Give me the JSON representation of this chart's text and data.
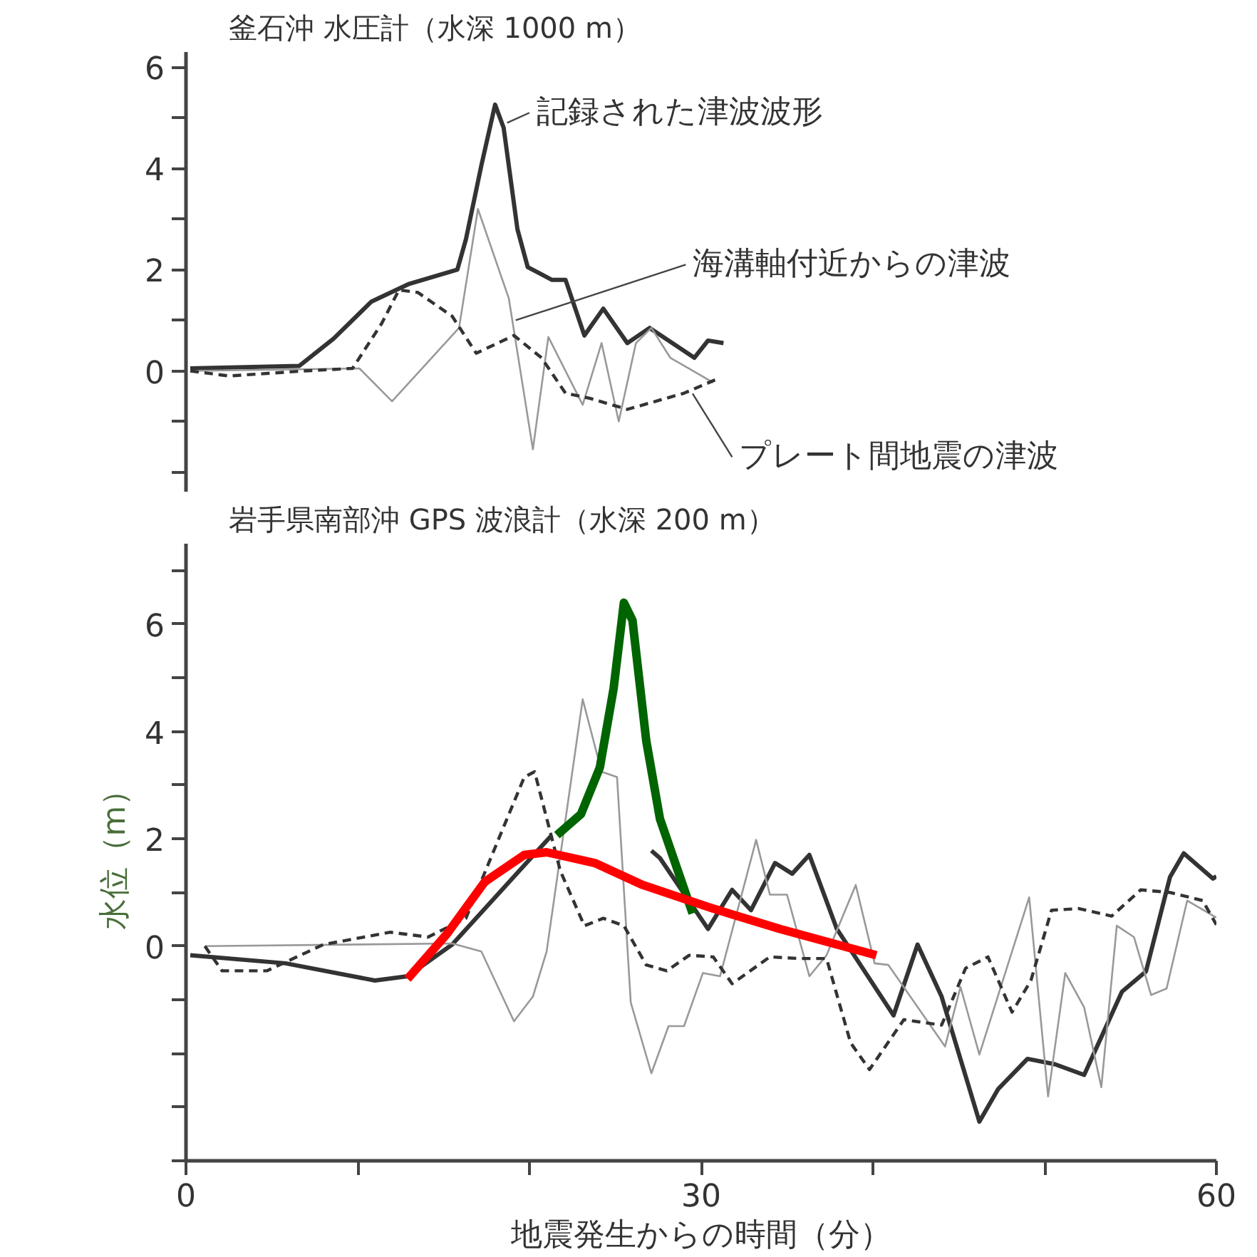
{
  "chart_data": [
    {
      "type": "line",
      "title": "釜石沖 水圧計（水深 1000 m）",
      "xlim": [
        0,
        60
      ],
      "ylim": [
        -2.4,
        6.3
      ],
      "tick_labels": "y",
      "grid": false,
      "yticks": [
        {
          "value": -2,
          "label": null
        },
        {
          "value": -1,
          "label": null
        },
        0,
        {
          "value": 1,
          "label": null
        },
        2,
        {
          "value": 3,
          "label": null
        },
        4,
        {
          "value": 5,
          "label": null
        },
        6
      ],
      "series": [
        {
          "name": "記録された津波波形",
          "color": "#333333",
          "line_style": "solid",
          "x": [
            0.25,
            6.6,
            8.6,
            10.8,
            13,
            15.8,
            16.3,
            17.2,
            18,
            18.5,
            19.3,
            19.9,
            21.3,
            22.1,
            23.2,
            24.3,
            25.7,
            27,
            29.6,
            30.4,
            31.3
          ],
          "values": [
            0.05,
            0.1,
            0.64,
            1.37,
            1.72,
            2.0,
            2.6,
            4.06,
            5.26,
            4.8,
            2.8,
            2.05,
            1.8,
            1.8,
            0.7,
            1.23,
            0.55,
            0.85,
            0.26,
            0.6,
            0.55
          ]
        },
        {
          "name": "海溝軸付近からの津波",
          "color": "#999999",
          "line_style": "solid",
          "x": [
            0.25,
            10.1,
            12,
            15.9,
            17,
            18.8,
            20.2,
            21.1,
            23.1,
            24.2,
            25.2,
            26.2,
            27.1,
            28.2,
            30.7
          ],
          "values": [
            0,
            0.05,
            -0.6,
            0.85,
            3.2,
            1.43,
            -1.55,
            0.67,
            -0.67,
            0.55,
            -1.0,
            0.55,
            0.85,
            0.26,
            -0.23
          ]
        },
        {
          "name": "プレート間地震の津波",
          "color": "#333333",
          "line_style": "dashed",
          "x": [
            0.25,
            2.5,
            6.9,
            9.7,
            11.4,
            12.4,
            13.5,
            15.5,
            16.9,
            19.1,
            20.7,
            22.1,
            23.5,
            25.7,
            29,
            31
          ],
          "values": [
            0,
            -0.1,
            0,
            0.05,
            0.94,
            1.6,
            1.55,
            1.08,
            0.35,
            0.7,
            0.26,
            -0.44,
            -0.54,
            -0.76,
            -0.44,
            -0.15
          ]
        }
      ]
    },
    {
      "type": "line",
      "title": "岩手県南部沖 GPS 波浪計（水深 200 m）",
      "xlabel": "地震発生からの時間（分）",
      "ylabel": "水位（m）",
      "xlim": [
        0,
        60
      ],
      "ylim": [
        -4,
        7.5
      ],
      "grid": false,
      "xticks": [
        0,
        {
          "value": 10,
          "label": null
        },
        {
          "value": 20,
          "label": null
        },
        30,
        {
          "value": 40,
          "label": null
        },
        {
          "value": 50,
          "label": null
        },
        60
      ],
      "yticks": [
        {
          "value": -4,
          "label": null
        },
        {
          "value": -3,
          "label": null
        },
        {
          "value": -2,
          "label": null
        },
        {
          "value": -1,
          "label": null
        },
        0,
        {
          "value": 1,
          "label": null
        },
        2,
        {
          "value": 3,
          "label": null
        },
        4,
        {
          "value": 5,
          "label": null
        },
        6,
        {
          "value": 7,
          "label": null
        }
      ],
      "series": [
        {
          "color": "#333333",
          "line_style": "solid",
          "x": [
            0.25,
            5.8,
            11,
            12.9,
            15.5,
            21.3,
            24,
            27.1,
            27.6,
            30.4,
            31.8,
            32.9,
            34.3,
            35.3,
            36.3,
            37.9,
            41.2,
            42.6,
            44,
            46.2,
            47.3,
            49,
            50.6,
            52.3,
            54.5,
            55.9,
            57.3,
            58.1,
            59.8,
            60
          ],
          "values": [
            -0.17,
            -0.32,
            -0.64,
            -0.56,
            0.03,
            2.07,
            null,
            1.78,
            1.64,
            0.32,
            1.05,
            0.67,
            1.55,
            1.35,
            1.7,
            0.32,
            -1.29,
            0.03,
            -0.94,
            -3.27,
            -2.66,
            -2.1,
            -2.2,
            -2.4,
            -0.85,
            -0.47,
            1.29,
            1.73,
            1.26,
            1.3
          ]
        },
        {
          "color": "#999999",
          "line_style": "solid",
          "x": [
            1.1,
            15.5,
            17.2,
            19.1,
            20.2,
            21,
            23.1,
            24.2,
            25.1,
            25.9,
            27.1,
            28.1,
            29,
            30.1,
            31.1,
            33.2,
            34,
            35,
            36.3,
            37.3,
            39,
            40.1,
            40.9,
            44.2,
            45.1,
            46.2,
            49.1,
            50.2,
            51.2,
            52.3,
            53.3,
            54.2,
            55.2,
            56.2,
            57.1,
            58.3,
            60
          ],
          "values": [
            0,
            0.05,
            -0.1,
            -1.4,
            -0.94,
            -0.1,
            4.6,
            3.25,
            3.15,
            -1.05,
            -2.37,
            -1.49,
            -1.49,
            -0.5,
            -0.56,
            1.98,
            0.96,
            0.96,
            -0.56,
            -0.17,
            1.14,
            -0.32,
            -0.35,
            -1.87,
            -0.76,
            -2.02,
            0.91,
            -2.8,
            -0.5,
            -1.14,
            -2.63,
            0.38,
            0.17,
            -0.91,
            -0.79,
            0.85,
            0.53
          ]
        },
        {
          "color": "#333333",
          "line_style": "dashed",
          "x": [
            1.1,
            2.1,
            4.7,
            8,
            11.9,
            14.1,
            16.3,
            18.3,
            19.7,
            20.3,
            21.8,
            23.2,
            24.3,
            25.5,
            26.8,
            28,
            29.3,
            30.7,
            31.8,
            34,
            35.7,
            37.3,
            38.7,
            39.8,
            41.8,
            44,
            45.4,
            46.7,
            48.1,
            49.2,
            50.4,
            52,
            53.9,
            55.6,
            57.3,
            59.2,
            60
          ],
          "values": [
            0,
            -0.46,
            -0.46,
            0.03,
            0.26,
            0.17,
            0.52,
            2.07,
            3.15,
            3.25,
            1.4,
            0.38,
            0.52,
            0.38,
            -0.35,
            -0.46,
            -0.17,
            -0.2,
            -0.7,
            -0.2,
            -0.23,
            -0.23,
            -1.8,
            -2.3,
            -1.37,
            -1.47,
            -0.41,
            -0.2,
            -1.23,
            -0.64,
            0.67,
            0.7,
            0.56,
            1.05,
            1.0,
            0.85,
            0.4
          ]
        },
        {
          "color": "#006400",
          "line_style": "solid",
          "x": [
            21.6,
            23,
            24.1,
            24.9,
            25.5,
            26,
            26.8,
            27.6,
            29.5
          ],
          "values": [
            2.07,
            2.46,
            3.33,
            4.8,
            6.4,
            6.07,
            3.83,
            2.37,
            0.61
          ]
        },
        {
          "color": "#ff0000",
          "line_style": "solid",
          "x": [
            12.9,
            15.2,
            17.4,
            19.7,
            21,
            23.8,
            26.6,
            30.7,
            34.6,
            40.2
          ],
          "values": [
            -0.61,
            0.23,
            1.2,
            1.7,
            1.75,
            1.55,
            1.14,
            0.7,
            0.32,
            -0.17
          ]
        }
      ]
    }
  ]
}
